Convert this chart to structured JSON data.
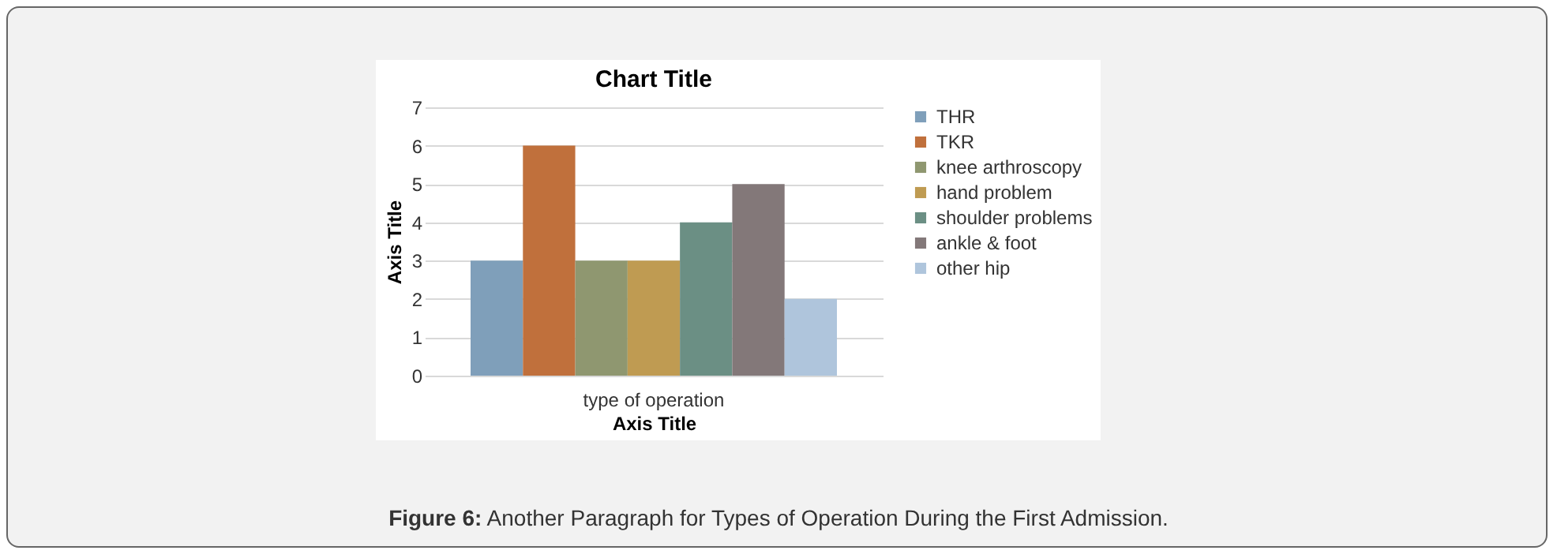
{
  "chart_data": {
    "type": "bar",
    "title": "Chart Title",
    "xlabel": "Axis Title",
    "ylabel": "Axis Title",
    "categories": [
      "type of operation"
    ],
    "series": [
      {
        "name": "THR",
        "color": "#7f9fba",
        "values": [
          3
        ]
      },
      {
        "name": "TKR",
        "color": "#c0703c",
        "values": [
          6
        ]
      },
      {
        "name": "knee arthroscopy",
        "color": "#8f9770",
        "values": [
          3
        ]
      },
      {
        "name": "hand problem",
        "color": "#bf9b52",
        "values": [
          3
        ]
      },
      {
        "name": "shoulder problems",
        "color": "#6b8f84",
        "values": [
          4
        ]
      },
      {
        "name": "ankle & foot",
        "color": "#837879",
        "values": [
          5
        ]
      },
      {
        "name": "other hip",
        "color": "#afc5dc",
        "values": [
          2
        ]
      }
    ],
    "ylim": [
      0,
      7
    ],
    "yticks": [
      0,
      1,
      2,
      3,
      4,
      5,
      6,
      7
    ],
    "grid": "y",
    "legend": "right",
    "annotations": [
      "Figure 6: Another Paragraph for Types of Operation During the First Admission."
    ]
  }
}
